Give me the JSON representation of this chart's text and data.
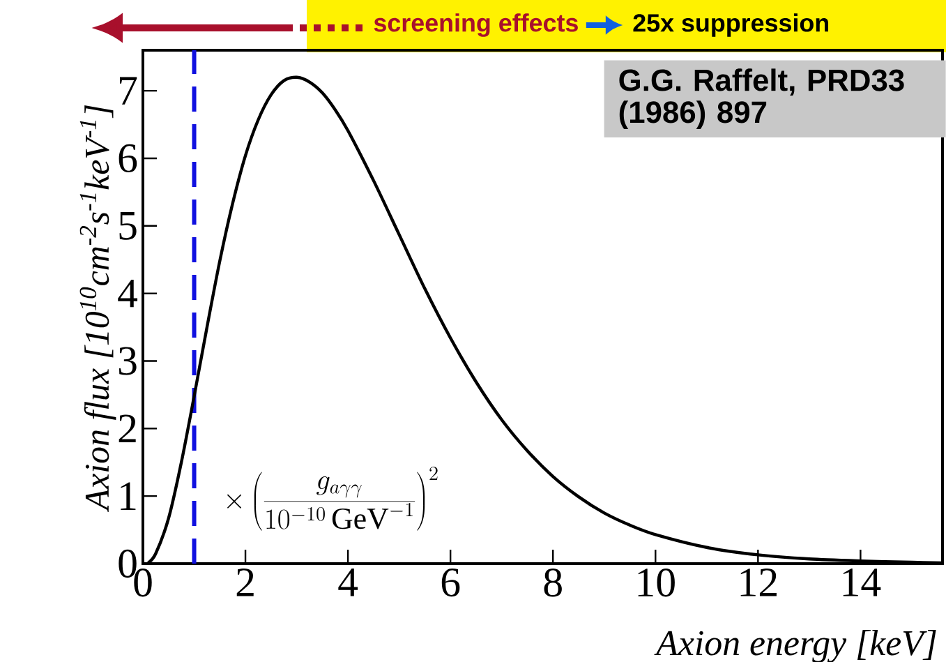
{
  "chart_data": {
    "type": "line",
    "xlabel": "Axion energy [keV]",
    "ylabel": "Axion flux [10$^{10}$cm$^{-2}$s$^{-1}$keV$^{-1}$]",
    "annotations": [
      "screening effects",
      "25x suppression",
      "G.G. Raffelt, PRD33 (1986) 897",
      "\\times\\left(\\frac{g_{a\\gamma\\gamma}}{10^{-10}\\,\\mathrm{GeV}^{-1}}\\right)^{2}"
    ],
    "series": [
      {
        "color": "#000000",
        "x": [
          0.1,
          0.25,
          0.5,
          0.75,
          1,
          1.25,
          1.5,
          1.75,
          2,
          2.25,
          2.5,
          2.75,
          3,
          3.25,
          3.5,
          3.75,
          4,
          4.5,
          5,
          5.5,
          6,
          6.5,
          7,
          7.5,
          8,
          8.5,
          9,
          9.5,
          10,
          11,
          12,
          13,
          14,
          15,
          15.6
        ],
        "values": [
          0.01,
          0.15,
          0.67,
          1.5,
          2.48,
          3.5,
          4.48,
          5.33,
          6.04,
          6.57,
          6.94,
          7.15,
          7.2,
          7.13,
          6.97,
          6.72,
          6.41,
          5.67,
          4.87,
          4.07,
          3.34,
          2.69,
          2.13,
          1.67,
          1.29,
          0.99,
          0.75,
          0.57,
          0.43,
          0.24,
          0.13,
          0.07,
          0.04,
          0.02,
          0.01
        ]
      }
    ],
    "xlim": [
      0,
      15.6
    ],
    "ylim": [
      0,
      7.6
    ],
    "xticks": [
      0,
      2,
      4,
      6,
      8,
      10,
      12,
      14
    ],
    "yticks": [
      0,
      1,
      2,
      3,
      4,
      5,
      6,
      7
    ],
    "ref_lines": [
      {
        "axis": "x",
        "value": 1,
        "color": "#1010e0",
        "line_style": "dashed"
      }
    ]
  }
}
